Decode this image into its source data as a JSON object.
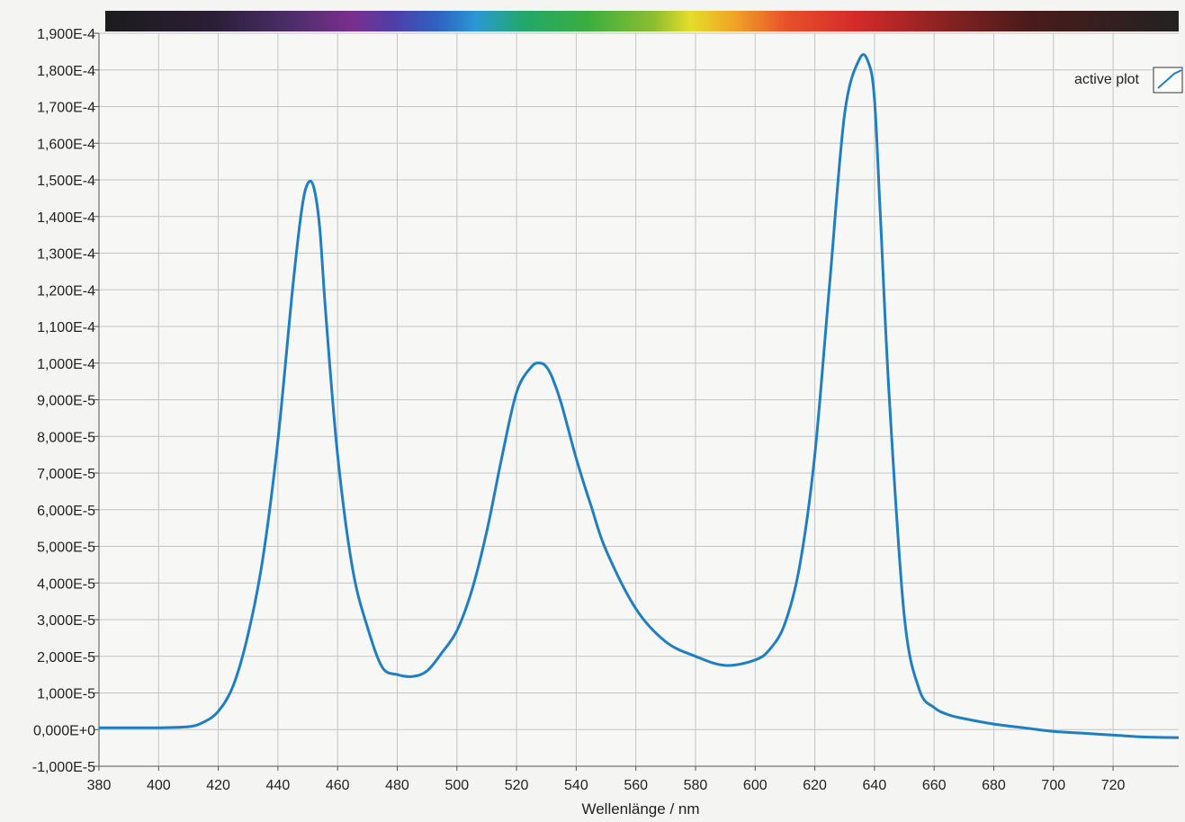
{
  "chart_data": {
    "type": "line",
    "xlabel": "Wellenlänge / nm",
    "ylabel": "",
    "xlim": [
      380,
      742
    ],
    "ylim": [
      -1e-05,
      0.00019
    ],
    "x_ticks": [
      "380",
      "400",
      "420",
      "440",
      "460",
      "480",
      "500",
      "520",
      "540",
      "560",
      "580",
      "600",
      "620",
      "640",
      "660",
      "680",
      "700",
      "720"
    ],
    "y_ticks": [
      "1,900E-4",
      "1,800E-4",
      "1,700E-4",
      "1,600E-4",
      "1,500E-4",
      "1,400E-4",
      "1,300E-4",
      "1,200E-4",
      "1,100E-4",
      "1,000E-4",
      "9,000E-5",
      "8,000E-5",
      "7,000E-5",
      "6,000E-5",
      "5,000E-5",
      "4,000E-5",
      "3,000E-5",
      "2,000E-5",
      "1,000E-5",
      "0,000E+0",
      "-1,000E-5"
    ],
    "grid": true,
    "legend_position": "top-right",
    "spectrum_bar": true,
    "series": [
      {
        "name": "active plot",
        "color": "#1f7fc0",
        "x": [
          380,
          390,
          400,
          410,
          415,
          420,
          425,
          430,
          435,
          440,
          445,
          448,
          450,
          452,
          454,
          456,
          460,
          465,
          470,
          475,
          480,
          485,
          490,
          495,
          500,
          505,
          510,
          515,
          520,
          525,
          528,
          530,
          532,
          535,
          540,
          545,
          550,
          560,
          570,
          580,
          590,
          600,
          605,
          610,
          615,
          620,
          625,
          630,
          635,
          638,
          640,
          642,
          645,
          650,
          655,
          660,
          665,
          670,
          680,
          690,
          700,
          710,
          720,
          730,
          742
        ],
        "y": [
          5e-07,
          5e-07,
          5e-07,
          8e-07,
          2e-06,
          5e-06,
          1.2e-05,
          2.6e-05,
          4.7e-05,
          7.9e-05,
          0.000121,
          0.000142,
          0.000149,
          0.000148,
          0.000137,
          0.000114,
          7.5e-05,
          4.4e-05,
          2.8e-05,
          1.7e-05,
          1.5e-05,
          1.45e-05,
          1.6e-05,
          2.1e-05,
          2.7e-05,
          3.8e-05,
          5.4e-05,
          7.4e-05,
          9.2e-05,
          9.9e-05,
          0.0001,
          9.9e-05,
          9.6e-05,
          8.9e-05,
          7.4e-05,
          6.1e-05,
          4.9e-05,
          3.3e-05,
          2.4e-05,
          2e-05,
          1.75e-05,
          1.9e-05,
          2.2e-05,
          2.9e-05,
          4.5e-05,
          7.5e-05,
          0.000122,
          0.000168,
          0.000183,
          0.000182,
          0.000172,
          0.00014,
          9e-05,
          3.1e-05,
          1.1e-05,
          6e-06,
          4e-06,
          3e-06,
          1.5e-06,
          5e-07,
          -5e-07,
          -1e-06,
          -1.5e-06,
          -2e-06,
          -2.2e-06
        ]
      }
    ]
  }
}
